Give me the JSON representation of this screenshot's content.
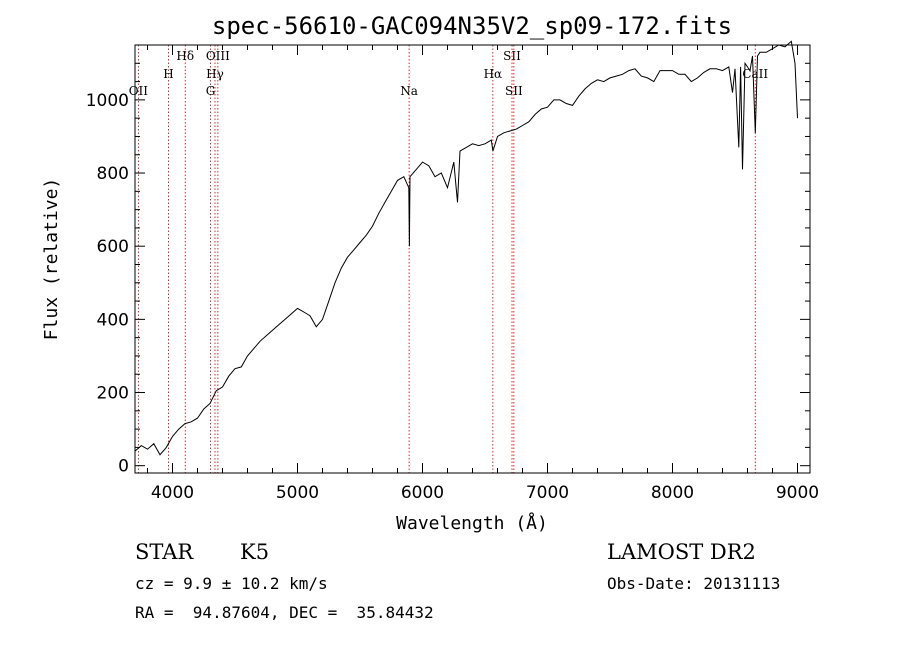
{
  "chart_data": {
    "type": "line",
    "title": "spec-56610-GAC094N35V2_sp09-172.fits",
    "xlabel": "Wavelength (Å)",
    "ylabel": "Flux (relative)",
    "xlim": [
      3700,
      9100
    ],
    "ylim": [
      -20,
      1150
    ],
    "xticks": [
      4000,
      5000,
      6000,
      7000,
      8000,
      9000
    ],
    "yticks": [
      0,
      200,
      400,
      600,
      800,
      1000
    ],
    "grid": false,
    "series": [
      {
        "name": "spectrum",
        "x": [
          3700,
          3750,
          3800,
          3850,
          3900,
          3950,
          4000,
          4050,
          4100,
          4150,
          4200,
          4250,
          4300,
          4350,
          4400,
          4450,
          4500,
          4550,
          4600,
          4650,
          4700,
          4750,
          4800,
          4850,
          4900,
          4950,
          5000,
          5050,
          5100,
          5150,
          5200,
          5250,
          5300,
          5350,
          5400,
          5450,
          5500,
          5550,
          5600,
          5650,
          5700,
          5750,
          5800,
          5850,
          5890,
          5895,
          5900,
          5950,
          6000,
          6050,
          6100,
          6150,
          6200,
          6250,
          6280,
          6300,
          6350,
          6400,
          6450,
          6500,
          6550,
          6563,
          6600,
          6650,
          6700,
          6750,
          6800,
          6850,
          6900,
          6950,
          7000,
          7050,
          7100,
          7150,
          7200,
          7250,
          7300,
          7350,
          7400,
          7450,
          7500,
          7550,
          7600,
          7650,
          7700,
          7750,
          7800,
          7850,
          7900,
          7950,
          8000,
          8050,
          8100,
          8150,
          8200,
          8250,
          8300,
          8350,
          8400,
          8450,
          8480,
          8500,
          8530,
          8545,
          8560,
          8580,
          8600,
          8620,
          8640,
          8662,
          8680,
          8700,
          8750,
          8800,
          8850,
          8900,
          8950,
          8980,
          9000
        ],
        "y": [
          40,
          55,
          45,
          60,
          30,
          50,
          80,
          100,
          115,
          120,
          130,
          155,
          170,
          205,
          215,
          245,
          265,
          270,
          300,
          320,
          340,
          355,
          370,
          385,
          400,
          415,
          430,
          420,
          410,
          380,
          400,
          450,
          500,
          540,
          570,
          590,
          610,
          630,
          655,
          690,
          720,
          750,
          780,
          790,
          760,
          600,
          790,
          810,
          830,
          820,
          790,
          800,
          760,
          830,
          720,
          860,
          870,
          880,
          875,
          880,
          890,
          860,
          900,
          910,
          915,
          920,
          930,
          940,
          960,
          975,
          980,
          1000,
          1000,
          990,
          985,
          1010,
          1030,
          1045,
          1055,
          1050,
          1060,
          1065,
          1070,
          1080,
          1085,
          1065,
          1060,
          1050,
          1080,
          1080,
          1080,
          1070,
          1070,
          1050,
          1060,
          1075,
          1085,
          1085,
          1080,
          1090,
          1020,
          1085,
          870,
          1090,
          810,
          1100,
          1090,
          1080,
          1120,
          910,
          1120,
          1130,
          1130,
          1140,
          1150,
          1145,
          1160,
          1100,
          950
        ]
      }
    ],
    "lines": [
      {
        "label": "OII",
        "x": 3727,
        "row": 3
      },
      {
        "label": "H",
        "x": 3968,
        "row": 2
      },
      {
        "label": "Hδ",
        "x": 4102,
        "row": 1
      },
      {
        "label": "G",
        "x": 4304,
        "row": 3
      },
      {
        "label": "Hγ",
        "x": 4340,
        "row": 2
      },
      {
        "label": "OIII",
        "x": 4363,
        "row": 1
      },
      {
        "label": "Na",
        "x": 5893,
        "row": 3
      },
      {
        "label": "Hα",
        "x": 6563,
        "row": 2
      },
      {
        "label": "SII",
        "x": 6716,
        "row": 1
      },
      {
        "label": "SII",
        "x": 6731,
        "row": 3
      },
      {
        "label": "CaII",
        "x": 8662,
        "row": 2
      }
    ],
    "line_color": "#c00000"
  },
  "footer": {
    "class_label": "STAR",
    "subclass": "K5",
    "survey": "LAMOST DR2",
    "cz": "cz = 9.9 ± 10.2 km/s",
    "obs_date": "Obs-Date: 20131113",
    "coords": "RA =  94.87604, DEC =  35.84432"
  }
}
